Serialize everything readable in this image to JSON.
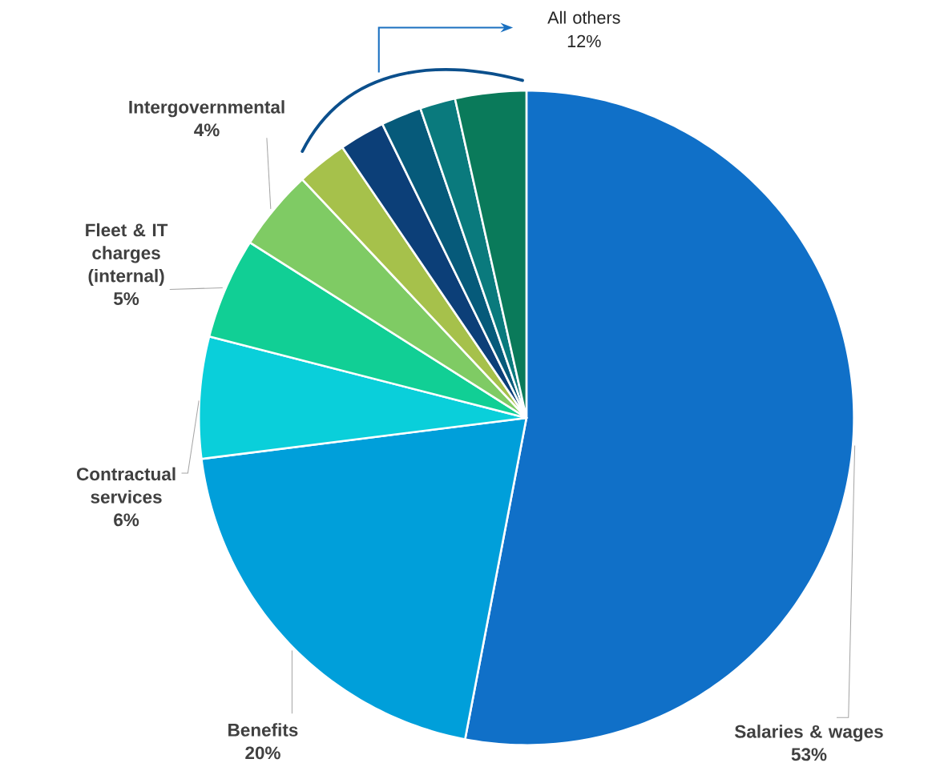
{
  "chart_data": {
    "type": "pie",
    "categories": [
      "Salaries & wages",
      "Benefits",
      "Contractual services",
      "Fleet & IT charges (internal)",
      "Intergovernmental",
      null,
      null,
      null,
      null,
      null
    ],
    "values": [
      53,
      20,
      6,
      5,
      4,
      2.5,
      2.25,
      2,
      1.75,
      3.5
    ],
    "colors": [
      "#1070c8",
      "#009fda",
      "#0acfda",
      "#11cf95",
      "#7fcb64",
      "#a6c14b",
      "#0c3f78",
      "#065a7a",
      "#0a7a7d",
      "#0a7a5a"
    ],
    "value_labels": [
      "53%",
      "20%",
      "6%",
      "5%",
      "4%",
      null,
      null,
      null,
      null,
      null
    ],
    "annotations": [
      "All others 12%"
    ]
  }
}
